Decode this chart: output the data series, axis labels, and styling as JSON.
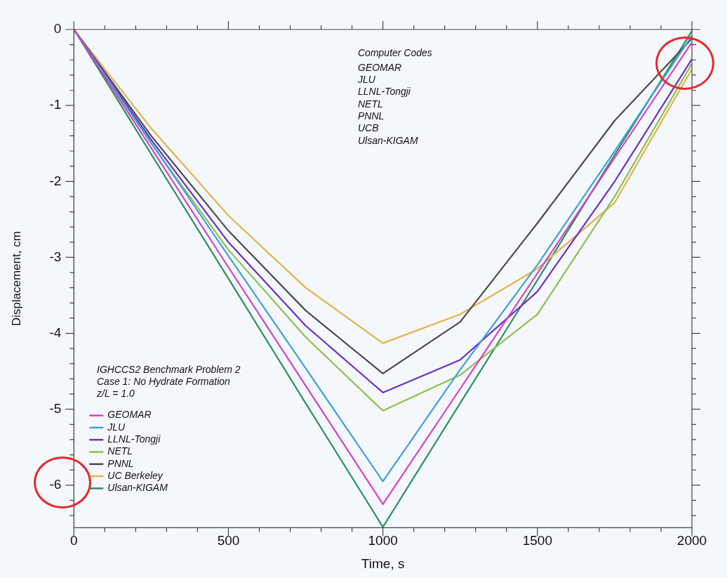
{
  "chart_data": {
    "type": "line",
    "xlabel": "Time, s",
    "ylabel": "Displacement, cm",
    "x": [
      0,
      250,
      500,
      750,
      1000,
      1250,
      1500,
      1750,
      2000
    ],
    "series": [
      {
        "name": "GEOMAR",
        "color": "#d63fc4",
        "values": [
          0,
          -1.56,
          -3.13,
          -4.69,
          -6.25,
          -4.73,
          -3.21,
          -1.69,
          -0.17
        ]
      },
      {
        "name": "JLU",
        "color": "#3fa0d6",
        "values": [
          0,
          -1.49,
          -2.98,
          -4.46,
          -5.95,
          -4.48,
          -3.1,
          -1.6,
          -0.08
        ]
      },
      {
        "name": "LLNL-Tongji",
        "color": "#6a2fc8",
        "values": [
          0,
          -1.45,
          -2.8,
          -3.9,
          -4.78,
          -4.35,
          -3.45,
          -2.0,
          -0.39
        ]
      },
      {
        "name": "NETL",
        "color": "#8fbf4a",
        "values": [
          0,
          -1.5,
          -2.9,
          -4.05,
          -5.02,
          -4.55,
          -3.75,
          -2.2,
          -0.45
        ]
      },
      {
        "name": "PNNL",
        "color": "#4a4a4a",
        "values": [
          0,
          -1.4,
          -2.65,
          -3.7,
          -4.53,
          -3.85,
          -2.55,
          -1.2,
          -0.12
        ]
      },
      {
        "name": "UC Berkeley",
        "color": "#e2b34a",
        "values": [
          0,
          -1.3,
          -2.45,
          -3.4,
          -4.13,
          -3.75,
          -3.15,
          -2.28,
          -0.52
        ]
      },
      {
        "name": "Ulsan-KIGAM",
        "color": "#2e8f5e",
        "values": [
          0,
          -1.64,
          -3.28,
          -4.92,
          -6.55,
          -4.92,
          -3.3,
          -1.65,
          -0.02
        ]
      }
    ],
    "xlim": [
      0,
      2000
    ],
    "ylim": [
      -6.56,
      0
    ],
    "xticks": [
      0,
      {
        "value": 100,
        "label": null
      },
      {
        "value": 200,
        "label": null
      },
      {
        "value": 300,
        "label": null
      },
      {
        "value": 400,
        "label": null
      },
      500,
      {
        "value": 600,
        "label": null
      },
      {
        "value": 700,
        "label": null
      },
      {
        "value": 800,
        "label": null
      },
      {
        "value": 900,
        "label": null
      },
      1000,
      {
        "value": 1100,
        "label": null
      },
      {
        "value": 1200,
        "label": null
      },
      {
        "value": 1300,
        "label": null
      },
      {
        "value": 1400,
        "label": null
      },
      1500,
      {
        "value": 1600,
        "label": null
      },
      {
        "value": 1700,
        "label": null
      },
      {
        "value": 1800,
        "label": null
      },
      {
        "value": 1900,
        "label": null
      },
      2000
    ],
    "yticks": [
      0,
      {
        "value": -0.2,
        "label": null
      },
      {
        "value": -0.4,
        "label": null
      },
      {
        "value": -0.6,
        "label": null
      },
      {
        "value": -0.8,
        "label": null
      },
      -1,
      {
        "value": -1.2,
        "label": null
      },
      {
        "value": -1.4,
        "label": null
      },
      {
        "value": -1.6,
        "label": null
      },
      {
        "value": -1.8,
        "label": null
      },
      -2,
      {
        "value": -2.2,
        "label": null
      },
      {
        "value": -2.4,
        "label": null
      },
      {
        "value": -2.6,
        "label": null
      },
      {
        "value": -2.8,
        "label": null
      },
      -3,
      {
        "value": -3.2,
        "label": null
      },
      {
        "value": -3.4,
        "label": null
      },
      {
        "value": -3.6,
        "label": null
      },
      {
        "value": -3.8,
        "label": null
      },
      -4,
      {
        "value": -4.2,
        "label": null
      },
      {
        "value": -4.4,
        "label": null
      },
      {
        "value": -4.6,
        "label": null
      },
      {
        "value": -4.8,
        "label": null
      },
      -5,
      {
        "value": -5.2,
        "label": null
      },
      {
        "value": -5.4,
        "label": null
      },
      {
        "value": -5.6,
        "label": null
      },
      {
        "value": -5.8,
        "label": null
      },
      -6,
      {
        "value": -6.2,
        "label": null
      },
      {
        "value": -6.4,
        "label": null
      }
    ],
    "grid": false,
    "legend": "bottom left",
    "marker": "none",
    "line_style": "solid",
    "annotations": [
      "Computer Codes",
      "GEOMAR",
      "JLU",
      "LLNL-Tongji",
      "NETL",
      "PNNL",
      "UCB",
      "Ulsan-KIGAM",
      "IGHCCS2 Benchmark Problem 2",
      "Case 1: No Hydrate Formation",
      "z/L = 1.0"
    ]
  }
}
